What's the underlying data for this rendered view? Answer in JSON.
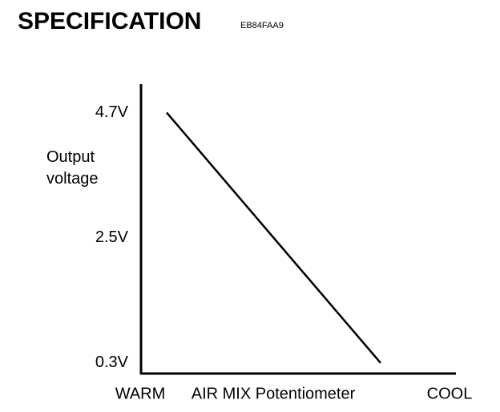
{
  "chart_data": {
    "type": "line",
    "title": "SPECIFICATION",
    "code": "EB84FAA9",
    "ylabel": "Output voltage",
    "xlabel": "AIR MIX Potentiometer",
    "categories": [
      "WARM",
      "COOL"
    ],
    "values": [
      4.7,
      0.3
    ],
    "color": "#000000",
    "ylim": [
      0.1,
      5.2
    ],
    "yticks": [
      {
        "value": 0.3,
        "label": "0.3V"
      },
      {
        "value": 2.5,
        "label": "2.5V"
      },
      {
        "value": 4.7,
        "label": "4.7V"
      }
    ],
    "grid": false
  }
}
